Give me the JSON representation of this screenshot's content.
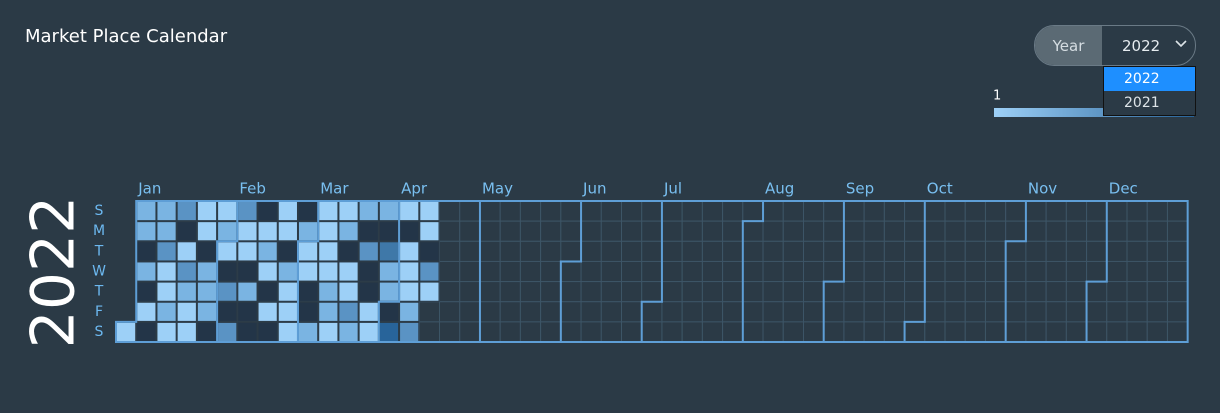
{
  "header": {
    "title": "Market Place Calendar"
  },
  "year_select": {
    "label": "Year",
    "selected": "2022",
    "options": [
      "2022",
      "2021"
    ]
  },
  "chart_data": {
    "type": "calendar-heatmap",
    "year_label": "2022",
    "weekday_labels": [
      "S",
      "M",
      "T",
      "W",
      "T",
      "F",
      "S"
    ],
    "month_labels": [
      "Jan",
      "Feb",
      "Mar",
      "Apr",
      "May",
      "Jun",
      "Jul",
      "Aug",
      "Sep",
      "Oct",
      "Nov",
      "Dec"
    ],
    "legend_min": 1,
    "colors": [
      "#233548",
      "#9dd0f7",
      "#7ab4e2",
      "#5a93c4",
      "#3f78a8",
      "#28649a"
    ],
    "values": [
      1,
      2,
      2,
      0,
      2,
      0,
      1,
      0,
      2,
      2,
      3,
      1,
      1,
      2,
      1,
      3,
      0,
      1,
      3,
      2,
      1,
      1,
      1,
      1,
      0,
      2,
      2,
      2,
      0,
      1,
      2,
      1,
      0,
      3,
      0,
      3,
      3,
      1,
      1,
      0,
      2,
      0,
      0,
      0,
      1,
      2,
      1,
      0,
      1,
      0,
      1,
      1,
      0,
      2,
      1,
      1,
      1,
      0,
      2,
      1,
      1,
      0,
      0,
      2,
      1,
      1,
      1,
      1,
      2,
      2,
      1,
      1,
      2,
      0,
      1,
      1,
      3,
      2,
      2,
      0,
      3,
      0,
      0,
      1,
      1,
      2,
      0,
      4,
      2,
      2,
      0,
      5,
      1,
      0,
      1,
      1,
      1,
      2,
      3,
      1,
      1,
      0,
      3,
      1
    ]
  }
}
